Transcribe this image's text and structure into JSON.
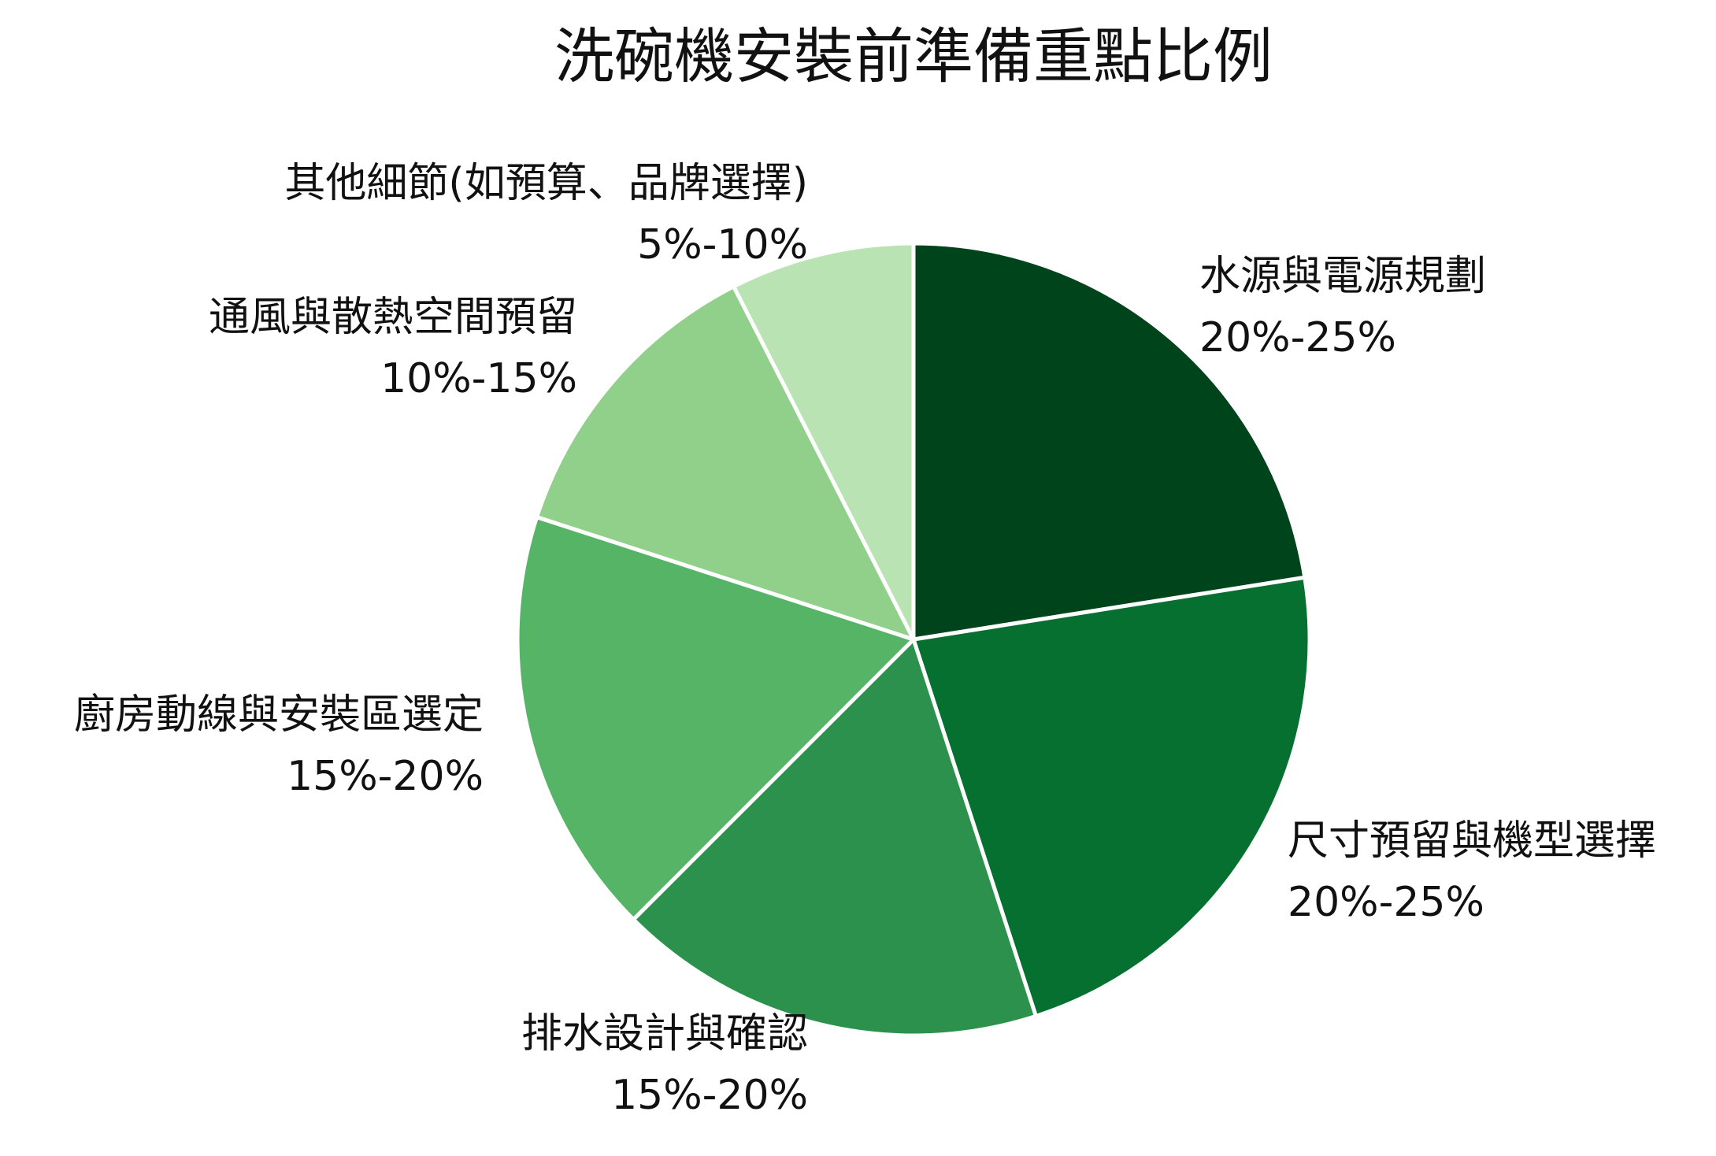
{
  "chart_data": {
    "type": "pie",
    "title": "洗碗機安裝前準備重點比例",
    "start": "12 o'clock",
    "direction": "clockwise",
    "slices": [
      {
        "label": "水源與電源規劃",
        "value_label": "20%-25%",
        "value": 22.5,
        "color": "#00441b"
      },
      {
        "label": "尺寸預留與機型選擇",
        "value_label": "20%-25%",
        "value": 22.5,
        "color": "#067031"
      },
      {
        "label": "排水設計與確認",
        "value_label": "15%-20%",
        "value": 17.5,
        "color": "#2c914c"
      },
      {
        "label": "廚房動線與安裝區選定",
        "value_label": "15%-20%",
        "value": 17.5,
        "color": "#56b467"
      },
      {
        "label": "通風與散熱空間預留",
        "value_label": "10%-15%",
        "value": 12.5,
        "color": "#91d08a"
      },
      {
        "label": "其他細節(如預算、品牌選擇)",
        "value_label": "5%-10%",
        "value": 7.5,
        "color": "#b9e3b2"
      }
    ]
  }
}
